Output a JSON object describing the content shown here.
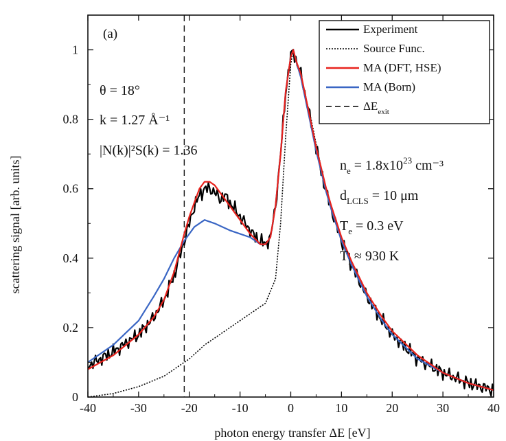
{
  "chart_data": {
    "type": "line",
    "panel_label": "(a)",
    "xlabel": "photon energy transfer ΔE [eV]",
    "ylabel": "scattering signal [arb. units]",
    "xlim": [
      -40,
      40
    ],
    "ylim": [
      0,
      1.1
    ],
    "xticks": [
      -40,
      -30,
      -20,
      -10,
      0,
      10,
      20,
      30,
      40
    ],
    "yticks": [
      0,
      0.2,
      0.4,
      0.6,
      0.8,
      1
    ],
    "xtick_labels": [
      "-40",
      "-30",
      "-20",
      "-10",
      "0",
      "10",
      "20",
      "30",
      "40"
    ],
    "ytick_labels": [
      "0",
      "0.2",
      "0.4",
      "0.6",
      "0.8",
      "1"
    ],
    "grid": false,
    "legend_position": "top-right",
    "vline": {
      "x": -21,
      "style": "dashed"
    },
    "legend": [
      {
        "label": "Experiment",
        "color": "#000000",
        "style": "solid"
      },
      {
        "label": "Source Func.",
        "color": "#000000",
        "style": "dotted"
      },
      {
        "label": "MA (DFT, HSE)",
        "color": "#e8221c",
        "style": "solid"
      },
      {
        "label": "MA (Born)",
        "color": "#3a66c4",
        "style": "solid"
      },
      {
        "label": "ΔE",
        "sub": "exit",
        "color": "#000000",
        "style": "dashed"
      }
    ],
    "annotations_left": {
      "theta": "θ = 18°",
      "k": "k = 1.27 Å⁻¹",
      "nk": "|N(k)|²S(k) = 1.36"
    },
    "annotations_right": [
      {
        "main": "n",
        "sub": "e",
        "rest": " = 1.8x10",
        "sup": "23",
        "tail": " cm⁻³"
      },
      {
        "main": "d",
        "sub": "LCLS",
        "rest": " = 10 μm",
        "sup": "",
        "tail": ""
      },
      {
        "main": "T",
        "sub": "e",
        "rest": " = 0.3 eV",
        "sup": "",
        "tail": ""
      },
      {
        "main": "T",
        "sub": "i",
        "rest": " ≈ 930 K",
        "sup": "",
        "tail": ""
      }
    ],
    "series": [
      {
        "name": "Experiment",
        "color": "#000000",
        "style": "solid",
        "noisy": true,
        "x": [
          -40,
          -35,
          -30,
          -27,
          -25,
          -23,
          -21,
          -20,
          -19,
          -18,
          -17,
          -16,
          -15,
          -14,
          -13,
          -12,
          -11,
          -10,
          -9,
          -8,
          -7,
          -6,
          -5,
          -4,
          -3,
          -2,
          -1,
          0,
          0.5,
          1,
          2,
          3,
          4,
          5,
          6,
          7,
          8,
          10,
          12,
          15,
          18,
          20,
          25,
          30,
          35,
          40
        ],
        "y": [
          0.09,
          0.13,
          0.18,
          0.23,
          0.28,
          0.35,
          0.45,
          0.5,
          0.55,
          0.58,
          0.6,
          0.6,
          0.59,
          0.57,
          0.58,
          0.56,
          0.54,
          0.52,
          0.5,
          0.48,
          0.46,
          0.45,
          0.44,
          0.46,
          0.55,
          0.7,
          0.88,
          0.98,
          1.0,
          0.97,
          0.93,
          0.86,
          0.79,
          0.72,
          0.65,
          0.59,
          0.54,
          0.45,
          0.38,
          0.29,
          0.22,
          0.18,
          0.11,
          0.07,
          0.04,
          0.02
        ]
      },
      {
        "name": "Source Func.",
        "color": "#000000",
        "style": "dotted",
        "noisy": false,
        "x": [
          -40,
          -35,
          -30,
          -25,
          -22,
          -20,
          -17,
          -15,
          -10,
          -7,
          -5,
          -3,
          -2,
          -1,
          0,
          0.5,
          1,
          2,
          3,
          4,
          5,
          6,
          7,
          8,
          10,
          12,
          15,
          18,
          20,
          25,
          30,
          35,
          40
        ],
        "y": [
          0.0,
          0.01,
          0.03,
          0.06,
          0.09,
          0.11,
          0.15,
          0.17,
          0.22,
          0.25,
          0.27,
          0.34,
          0.5,
          0.75,
          0.96,
          1.0,
          0.97,
          0.92,
          0.86,
          0.8,
          0.73,
          0.66,
          0.6,
          0.54,
          0.45,
          0.38,
          0.29,
          0.22,
          0.18,
          0.11,
          0.07,
          0.04,
          0.02
        ]
      },
      {
        "name": "MA (DFT, HSE)",
        "color": "#e8221c",
        "style": "solid",
        "noisy": false,
        "x": [
          -40,
          -35,
          -30,
          -27,
          -25,
          -23,
          -21,
          -20,
          -19,
          -18,
          -17,
          -16,
          -15,
          -14,
          -12,
          -10,
          -8,
          -6,
          -5,
          -4,
          -3,
          -2,
          -1,
          0,
          0.5,
          1,
          2,
          3,
          4,
          5,
          6,
          7,
          8,
          10,
          12,
          15,
          18,
          20,
          25,
          30,
          35,
          40
        ],
        "y": [
          0.08,
          0.12,
          0.18,
          0.23,
          0.28,
          0.36,
          0.47,
          0.52,
          0.56,
          0.6,
          0.62,
          0.62,
          0.61,
          0.59,
          0.55,
          0.51,
          0.47,
          0.44,
          0.44,
          0.46,
          0.55,
          0.7,
          0.88,
          0.98,
          1.0,
          0.97,
          0.93,
          0.86,
          0.79,
          0.72,
          0.66,
          0.6,
          0.55,
          0.46,
          0.39,
          0.3,
          0.23,
          0.19,
          0.12,
          0.07,
          0.04,
          0.02
        ]
      },
      {
        "name": "MA (Born)",
        "color": "#3a66c4",
        "style": "solid",
        "noisy": false,
        "x": [
          -40,
          -35,
          -30,
          -27,
          -25,
          -23,
          -21,
          -19,
          -17,
          -15,
          -12,
          -10,
          -8,
          -6,
          -5,
          -4,
          -3,
          -2,
          -1,
          0,
          0.5,
          1,
          2,
          3,
          4,
          5,
          6,
          7,
          8,
          10,
          12,
          15,
          18,
          20,
          25,
          30,
          35,
          40
        ],
        "y": [
          0.1,
          0.15,
          0.22,
          0.29,
          0.34,
          0.4,
          0.45,
          0.49,
          0.51,
          0.5,
          0.48,
          0.47,
          0.46,
          0.44,
          0.44,
          0.46,
          0.55,
          0.7,
          0.88,
          0.98,
          1.0,
          0.97,
          0.92,
          0.85,
          0.78,
          0.71,
          0.65,
          0.59,
          0.54,
          0.45,
          0.38,
          0.29,
          0.22,
          0.18,
          0.11,
          0.07,
          0.04,
          0.02
        ]
      }
    ]
  }
}
